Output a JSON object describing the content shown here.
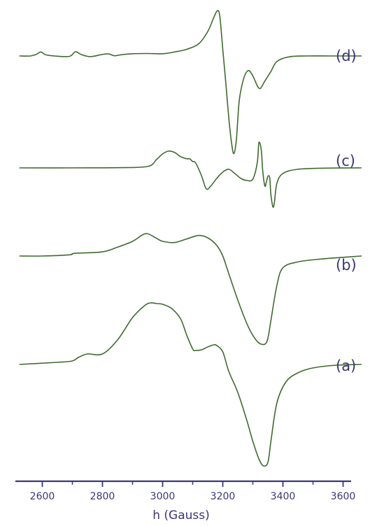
{
  "chart_data": {
    "type": "line",
    "xlabel": "h (Gauss)",
    "xlim": [
      2525,
      3670
    ],
    "x_ticks": [
      2600,
      2800,
      3000,
      3200,
      3400,
      3600
    ],
    "x_minor_ticks": [
      2700,
      2900,
      3100,
      3300,
      3500
    ],
    "grid": false,
    "colors": {
      "curve": "#3f6b2f",
      "axis": "#3c3778",
      "text": "#3c3778"
    },
    "series": [
      {
        "name": "(d)",
        "x": [
          2525,
          2560,
          2580,
          2595,
          2610,
          2640,
          2690,
          2710,
          2730,
          2760,
          2800,
          2820,
          2840,
          2860,
          2900,
          2950,
          3000,
          3040,
          3080,
          3120,
          3150,
          3170,
          3182,
          3190,
          3200,
          3210,
          3220,
          3230,
          3237,
          3245,
          3255,
          3270,
          3285,
          3300,
          3315,
          3325,
          3340,
          3360,
          3380,
          3420,
          3480,
          3560,
          3660
        ],
        "y": [
          0,
          0,
          0.7,
          1.8,
          0.6,
          0,
          -0.2,
          1.9,
          0.6,
          -0.3,
          0.7,
          0.9,
          0.1,
          0.5,
          1.0,
          1.1,
          1.0,
          1.8,
          3.0,
          5.5,
          11,
          17.3,
          20.4,
          18,
          3,
          -12,
          -28,
          -40,
          -44,
          -38,
          -20,
          -10,
          -6.6,
          -9,
          -13.5,
          -14.6,
          -11.3,
          -7,
          -2.5,
          -0.4,
          0,
          0,
          0
        ]
      },
      {
        "name": "(c)",
        "x": [
          2525,
          2700,
          2850,
          2950,
          2980,
          3000,
          3020,
          3040,
          3060,
          3080,
          3090,
          3100,
          3110,
          3130,
          3145,
          3160,
          3180,
          3200,
          3220,
          3240,
          3260,
          3280,
          3300,
          3315,
          3320,
          3328,
          3333,
          3340,
          3345,
          3350,
          3356,
          3360,
          3367,
          3372,
          3380,
          3400,
          3450,
          3550,
          3660
        ],
        "y": [
          0,
          0,
          0.3,
          2,
          12,
          20,
          24,
          22,
          16,
          13,
          13,
          9,
          7,
          -12,
          -30,
          -26,
          -15,
          -6,
          -2,
          -8,
          -15,
          -18,
          -16,
          8,
          36,
          26,
          -5,
          -26,
          -20,
          -12,
          -14,
          -38,
          -56,
          -48,
          -22,
          -8,
          -2,
          -0.3,
          0
        ]
      },
      {
        "name": "(b)",
        "x": [
          2525,
          2600,
          2690,
          2700,
          2720,
          2800,
          2850,
          2900,
          2930,
          2950,
          2980,
          3000,
          3040,
          3080,
          3120,
          3150,
          3180,
          3200,
          3220,
          3250,
          3280,
          3300,
          3320,
          3340,
          3350,
          3360,
          3380,
          3400,
          3450,
          3530,
          3660
        ],
        "y": [
          0,
          0,
          2,
          4,
          5,
          7,
          15,
          25,
          35,
          38,
          30,
          25,
          23,
          29,
          35,
          31,
          18,
          0,
          -30,
          -75,
          -115,
          -135,
          -148,
          -150,
          -140,
          -110,
          -50,
          -20,
          -10,
          -5,
          0
        ]
      },
      {
        "name": "(a)",
        "x": [
          2525,
          2650,
          2700,
          2720,
          2750,
          2800,
          2850,
          2900,
          2940,
          2960,
          2980,
          3000,
          3030,
          3060,
          3080,
          3100,
          3110,
          3130,
          3150,
          3170,
          3180,
          3200,
          3220,
          3250,
          3280,
          3300,
          3320,
          3335,
          3350,
          3360,
          3380,
          3410,
          3450,
          3500,
          3580,
          3660
        ],
        "y": [
          0,
          3,
          5,
          10,
          15,
          15,
          35,
          67,
          84,
          88,
          87,
          86,
          80,
          65,
          42,
          22,
          20,
          21,
          25,
          28,
          27,
          18,
          -10,
          -40,
          -80,
          -110,
          -135,
          -145,
          -140,
          -110,
          -55,
          -25,
          -12,
          -5,
          -1,
          0
        ]
      }
    ]
  }
}
